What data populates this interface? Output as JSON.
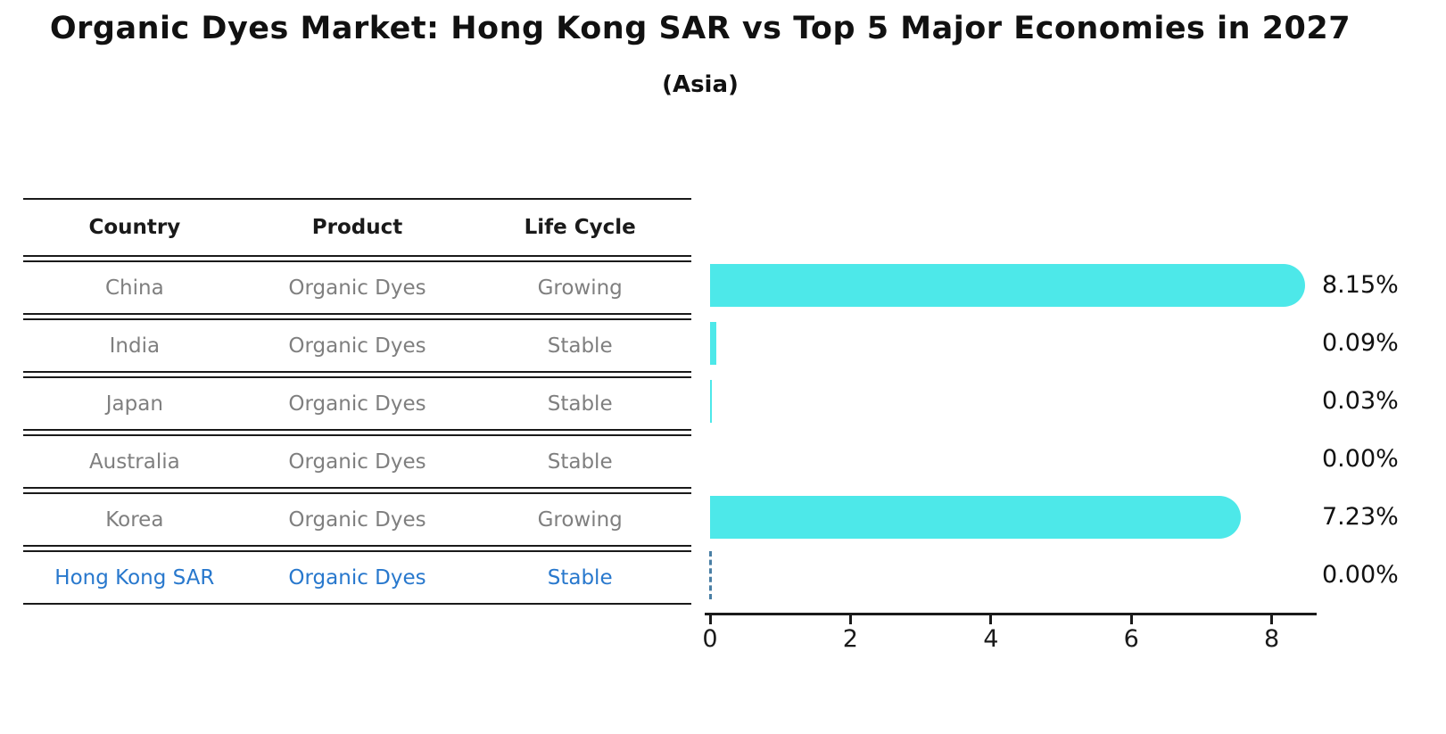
{
  "title": "Organic Dyes Market: Hong Kong SAR vs Top 5 Major Economies in 2027",
  "subtitle": "(Asia)",
  "table": {
    "headers": [
      "Country",
      "Product",
      "Life Cycle"
    ],
    "rows": [
      {
        "country": "China",
        "product": "Organic Dyes",
        "life_cycle": "Growing",
        "highlighted": false
      },
      {
        "country": "India",
        "product": "Organic Dyes",
        "life_cycle": "Stable",
        "highlighted": false
      },
      {
        "country": "Japan",
        "product": "Organic Dyes",
        "life_cycle": "Stable",
        "highlighted": false
      },
      {
        "country": "Australia",
        "product": "Organic Dyes",
        "life_cycle": "Stable",
        "highlighted": false
      },
      {
        "country": "Korea",
        "product": "Organic Dyes",
        "life_cycle": "Growing",
        "highlighted": false
      },
      {
        "country": "Hong Kong SAR",
        "product": "Organic Dyes",
        "life_cycle": "Stable",
        "highlighted": true
      }
    ]
  },
  "chart_data": {
    "type": "bar",
    "orientation": "horizontal",
    "categories": [
      "China",
      "India",
      "Japan",
      "Australia",
      "Korea",
      "Hong Kong SAR"
    ],
    "values": [
      8.15,
      0.09,
      0.03,
      0.0,
      7.23,
      0.0
    ],
    "value_labels": [
      "8.15%",
      "0.09%",
      "0.03%",
      "0.00%",
      "7.23%",
      "0.00%"
    ],
    "x_ticks": [
      0,
      2,
      4,
      6,
      8
    ],
    "xlim": [
      0,
      8.6
    ],
    "grid": false,
    "legend": false,
    "bar_color": "#4de8e9",
    "highlight_marker": "dashed-line-at-zero",
    "highlight_marker_color": "#4a7fa5",
    "highlight_text_color": "#2878cd"
  }
}
